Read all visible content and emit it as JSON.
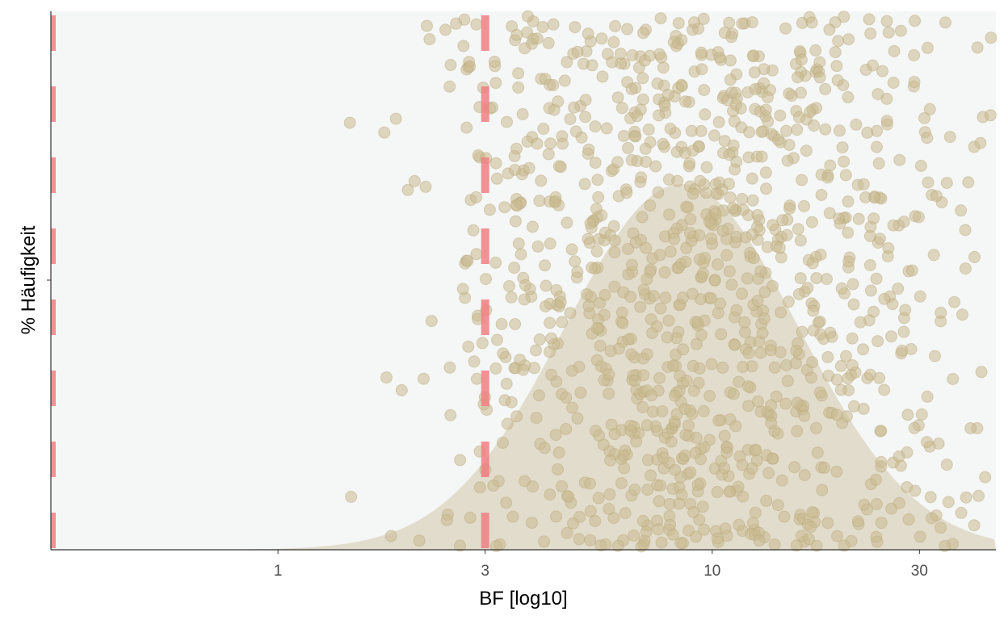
{
  "chart_data": {
    "type": "scatter",
    "xlabel": "BF [log10]",
    "ylabel": "% Häufigkeit",
    "x_scale": "log10",
    "xlim": [
      0.3,
      45
    ],
    "x_ticks": [
      1,
      3,
      10,
      30
    ],
    "x_tick_labels": [
      "1",
      "3",
      "10",
      "30"
    ],
    "grid": false,
    "reference_lines": [
      0.3,
      3
    ],
    "density_peak_x": 8.5,
    "n_points": 1150,
    "point_distribution": "log-normal jitter centred near BF 8, spread 2.5 to 45",
    "colors": {
      "panel_background": "#f5f6f6",
      "density_fill": "#e2dccc",
      "points": "#c9b98f",
      "reference_line": "#f07f83",
      "axis": "#333333"
    }
  }
}
